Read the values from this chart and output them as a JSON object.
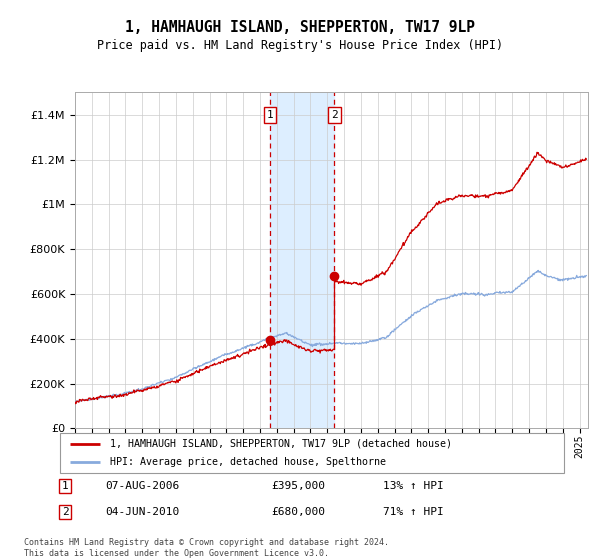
{
  "title": "1, HAMHAUGH ISLAND, SHEPPERTON, TW17 9LP",
  "subtitle": "Price paid vs. HM Land Registry's House Price Index (HPI)",
  "legend_line1": "1, HAMHAUGH ISLAND, SHEPPERTON, TW17 9LP (detached house)",
  "legend_line2": "HPI: Average price, detached house, Spelthorne",
  "sale1_label": "1",
  "sale1_date": "07-AUG-2006",
  "sale1_price": "£395,000",
  "sale1_hpi": "13% ↑ HPI",
  "sale1_year": 2006.6,
  "sale1_value": 395000,
  "sale2_label": "2",
  "sale2_date": "04-JUN-2010",
  "sale2_price": "£680,000",
  "sale2_hpi": "71% ↑ HPI",
  "sale2_year": 2010.42,
  "sale2_value": 680000,
  "footnote": "Contains HM Land Registry data © Crown copyright and database right 2024.\nThis data is licensed under the Open Government Licence v3.0.",
  "red_color": "#cc0000",
  "blue_color": "#88aadd",
  "shade_color": "#ddeeff",
  "grid_color": "#cccccc",
  "ylim_max": 1500000,
  "xlim_start": 1995.0,
  "xlim_end": 2025.5
}
